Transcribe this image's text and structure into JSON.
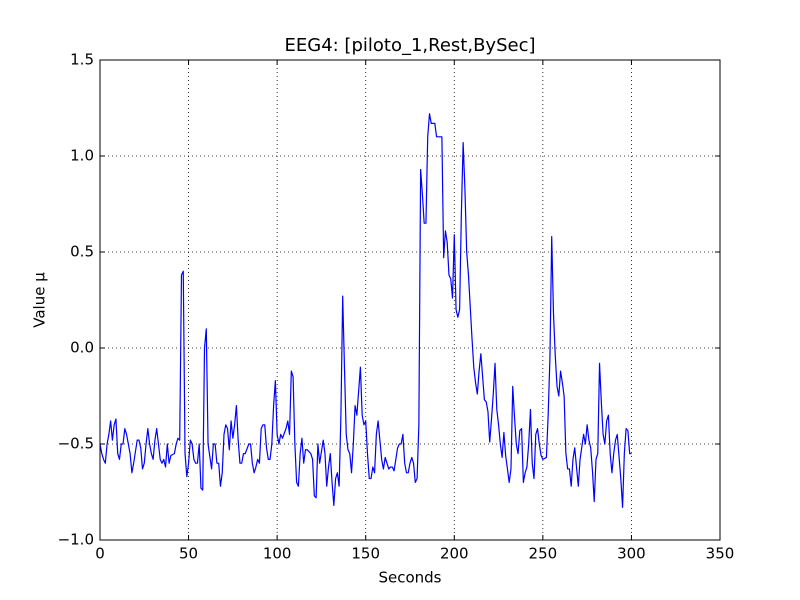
{
  "chart_data": {
    "type": "line",
    "title": "EEG4: [piloto_1,Rest,BySec]",
    "xlabel": "Seconds",
    "ylabel": "Value µ",
    "grid": true,
    "xlim": [
      0,
      350
    ],
    "xticks": [
      0,
      50,
      100,
      150,
      200,
      250,
      300,
      350
    ],
    "ylim": [
      -1.0,
      1.5
    ],
    "yticks": [
      {
        "value": -1.0,
        "label": "−1.0"
      },
      {
        "value": -0.5,
        "label": "−0.5"
      },
      {
        "value": 0.0,
        "label": "0.0"
      },
      {
        "value": 0.5,
        "label": "0.5"
      },
      {
        "value": 1.0,
        "label": "1.0"
      },
      {
        "value": 1.5,
        "label": "1.5"
      }
    ],
    "x": [
      0,
      1,
      2,
      3,
      4,
      5,
      6,
      7,
      8,
      9,
      10,
      11,
      12,
      13,
      14,
      15,
      16,
      17,
      18,
      19,
      21,
      22,
      23,
      24,
      25,
      26,
      27,
      28,
      29,
      30,
      31,
      32,
      33,
      34,
      35,
      36,
      37,
      38,
      39,
      40,
      42,
      43,
      44,
      45,
      46,
      47,
      48,
      49,
      50,
      51,
      52,
      53,
      54,
      55,
      56,
      57,
      58,
      59,
      60,
      61,
      63,
      64,
      65,
      66,
      67,
      68,
      69,
      70,
      71,
      72,
      73,
      74,
      75,
      76,
      77,
      78,
      79,
      80,
      81,
      82,
      84,
      85,
      86,
      87,
      88,
      89,
      90,
      91,
      92,
      93,
      94,
      95,
      96,
      97,
      98,
      99,
      100,
      101,
      102,
      103,
      105,
      106,
      107,
      108,
      109,
      110,
      111,
      112,
      113,
      114,
      115,
      116,
      117,
      118,
      119,
      120,
      121,
      122,
      123,
      124,
      126,
      127,
      128,
      129,
      130,
      131,
      132,
      133,
      134,
      135,
      136,
      137,
      138,
      139,
      140,
      141,
      142,
      143,
      144,
      145,
      147,
      148,
      149,
      150,
      151,
      152,
      153,
      154,
      155,
      156,
      157,
      158,
      159,
      160,
      161,
      162,
      163,
      164,
      165,
      166,
      168,
      169,
      170,
      171,
      172,
      173,
      174,
      175,
      176,
      177,
      178,
      179,
      180,
      181,
      182,
      183,
      184,
      185,
      186,
      187,
      189,
      190,
      191,
      192,
      193,
      194,
      195,
      196,
      197,
      198,
      199,
      200,
      201,
      202,
      203,
      204,
      205,
      206,
      207,
      208,
      210,
      211,
      212,
      213,
      214,
      215,
      216,
      217,
      218,
      219,
      220,
      221,
      222,
      223,
      224,
      225,
      226,
      227,
      228,
      229,
      231,
      232,
      233,
      234,
      235,
      236,
      237,
      238,
      239,
      240,
      241,
      242,
      243,
      244,
      245,
      246,
      247,
      248,
      249,
      250,
      252,
      253,
      254,
      255,
      256,
      257,
      258,
      259,
      260,
      261,
      262,
      263,
      264,
      265,
      266,
      267,
      268,
      269,
      270,
      271,
      273,
      274,
      275,
      276,
      277,
      278,
      279,
      280,
      281,
      282,
      283,
      284,
      285,
      286,
      287,
      288,
      289,
      290,
      291,
      292,
      294,
      295,
      296,
      297,
      298,
      299,
      300
    ],
    "series": [
      {
        "color": "#0000ff",
        "values": [
          -0.5,
          -0.55,
          -0.58,
          -0.6,
          -0.5,
          -0.45,
          -0.38,
          -0.48,
          -0.4,
          -0.37,
          -0.55,
          -0.58,
          -0.5,
          -0.5,
          -0.42,
          -0.45,
          -0.5,
          -0.55,
          -0.65,
          -0.6,
          -0.48,
          -0.48,
          -0.52,
          -0.63,
          -0.6,
          -0.5,
          -0.42,
          -0.5,
          -0.55,
          -0.58,
          -0.48,
          -0.42,
          -0.5,
          -0.58,
          -0.6,
          -0.58,
          -0.62,
          -0.5,
          -0.6,
          -0.56,
          -0.55,
          -0.5,
          -0.47,
          -0.48,
          0.38,
          0.4,
          -0.55,
          -0.67,
          -0.6,
          -0.48,
          -0.5,
          -0.58,
          -0.6,
          -0.6,
          -0.5,
          -0.73,
          -0.74,
          0.0,
          0.1,
          -0.5,
          -0.63,
          -0.5,
          -0.5,
          -0.6,
          -0.6,
          -0.72,
          -0.65,
          -0.45,
          -0.4,
          -0.42,
          -0.53,
          -0.38,
          -0.47,
          -0.4,
          -0.3,
          -0.48,
          -0.6,
          -0.6,
          -0.55,
          -0.55,
          -0.5,
          -0.5,
          -0.6,
          -0.65,
          -0.62,
          -0.58,
          -0.6,
          -0.42,
          -0.4,
          -0.4,
          -0.52,
          -0.58,
          -0.58,
          -0.5,
          -0.3,
          -0.17,
          -0.45,
          -0.5,
          -0.45,
          -0.47,
          -0.42,
          -0.38,
          -0.45,
          -0.12,
          -0.15,
          -0.5,
          -0.7,
          -0.72,
          -0.55,
          -0.47,
          -0.6,
          -0.53,
          -0.53,
          -0.54,
          -0.55,
          -0.58,
          -0.77,
          -0.78,
          -0.5,
          -0.6,
          -0.48,
          -0.55,
          -0.72,
          -0.62,
          -0.55,
          -0.7,
          -0.82,
          -0.68,
          -0.65,
          -0.72,
          -0.35,
          0.27,
          -0.1,
          -0.45,
          -0.53,
          -0.55,
          -0.65,
          -0.5,
          -0.3,
          -0.35,
          -0.1,
          -0.35,
          -0.4,
          -0.38,
          -0.55,
          -0.68,
          -0.68,
          -0.62,
          -0.65,
          -0.45,
          -0.38,
          -0.48,
          -0.58,
          -0.63,
          -0.57,
          -0.6,
          -0.63,
          -0.62,
          -0.62,
          -0.64,
          -0.52,
          -0.5,
          -0.5,
          -0.45,
          -0.6,
          -0.65,
          -0.65,
          -0.6,
          -0.57,
          -0.6,
          -0.7,
          -0.68,
          -0.4,
          0.93,
          0.8,
          0.65,
          0.65,
          1.1,
          1.22,
          1.17,
          1.17,
          1.1,
          1.1,
          1.1,
          1.1,
          0.47,
          0.61,
          0.55,
          0.38,
          0.36,
          0.26,
          0.59,
          0.2,
          0.16,
          0.2,
          0.7,
          1.07,
          0.83,
          0.5,
          0.38,
          0.05,
          -0.1,
          -0.18,
          -0.24,
          -0.12,
          -0.03,
          -0.15,
          -0.27,
          -0.28,
          -0.33,
          -0.49,
          -0.37,
          -0.24,
          -0.08,
          -0.32,
          -0.4,
          -0.5,
          -0.57,
          -0.44,
          -0.56,
          -0.7,
          -0.63,
          -0.2,
          -0.36,
          -0.5,
          -0.55,
          -0.43,
          -0.42,
          -0.7,
          -0.65,
          -0.62,
          -0.5,
          -0.32,
          -0.6,
          -0.68,
          -0.45,
          -0.42,
          -0.5,
          -0.56,
          -0.58,
          -0.57,
          -0.35,
          -0.05,
          0.58,
          0.18,
          -0.04,
          -0.2,
          -0.25,
          -0.12,
          -0.18,
          -0.25,
          -0.55,
          -0.63,
          -0.63,
          -0.72,
          -0.58,
          -0.52,
          -0.62,
          -0.72,
          -0.58,
          -0.45,
          -0.5,
          -0.4,
          -0.48,
          -0.52,
          -0.64,
          -0.8,
          -0.58,
          -0.55,
          -0.08,
          -0.28,
          -0.45,
          -0.5,
          -0.38,
          -0.35,
          -0.55,
          -0.65,
          -0.55,
          -0.48,
          -0.45,
          -0.68,
          -0.83,
          -0.55,
          -0.42,
          -0.43,
          -0.55,
          -0.55
        ]
      }
    ]
  }
}
